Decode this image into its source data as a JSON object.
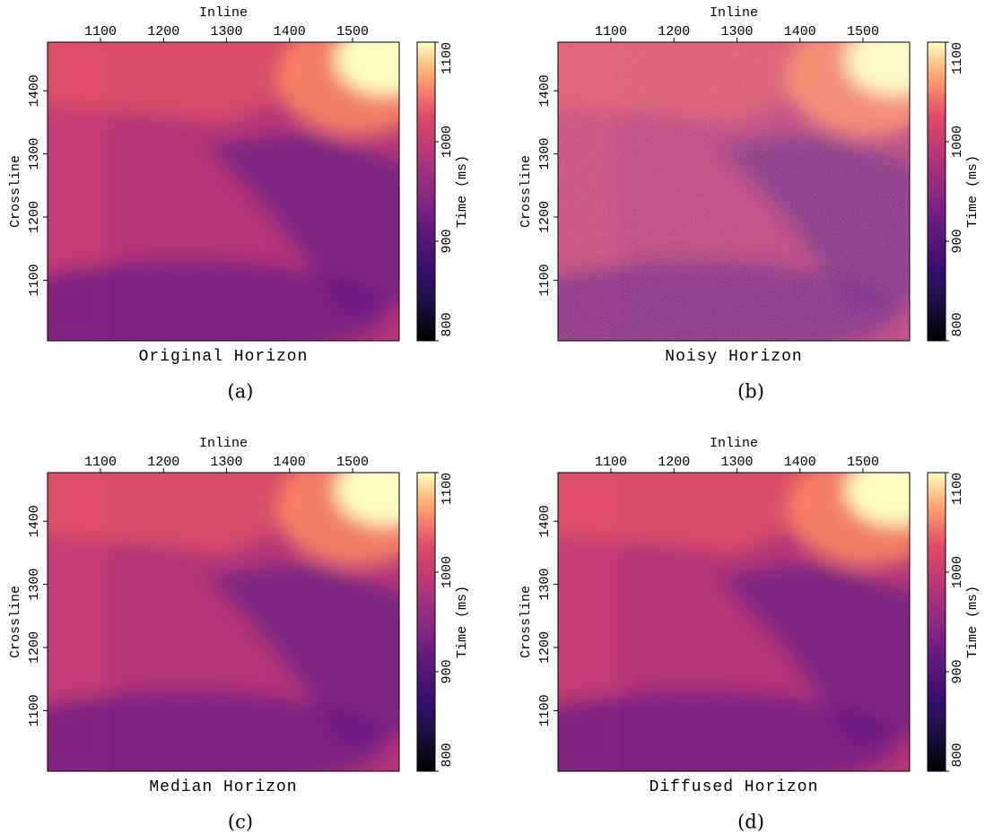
{
  "chart_data": [
    {
      "type": "heatmap",
      "title": "Original Horizon",
      "caption": "(a)",
      "xlabel": "Inline",
      "ylabel": "Crossline",
      "clabel": "Time (ms)",
      "xlim": [
        1016,
        1574
      ],
      "xticks": [
        1100,
        1200,
        1300,
        1400,
        1500
      ],
      "ylim": [
        1004,
        1477
      ],
      "yticks": [
        1100,
        1200,
        1300,
        1400
      ],
      "clim": [
        800,
        1100
      ],
      "cticks": [
        800,
        900,
        1000,
        1100
      ],
      "colormap": "magma"
    },
    {
      "type": "heatmap",
      "title": "Noisy Horizon",
      "caption": "(b)",
      "xlabel": "Inline",
      "ylabel": "Crossline",
      "clabel": "Time (ms)",
      "xlim": [
        1016,
        1574
      ],
      "xticks": [
        1100,
        1200,
        1300,
        1400,
        1500
      ],
      "ylim": [
        1004,
        1477
      ],
      "yticks": [
        1100,
        1200,
        1300,
        1400
      ],
      "clim": [
        800,
        1100
      ],
      "cticks": [
        800,
        900,
        1000,
        1100
      ],
      "colormap": "magma"
    },
    {
      "type": "heatmap",
      "title": "Median Horizon",
      "caption": "(c)",
      "xlabel": "Inline",
      "ylabel": "Crossline",
      "clabel": "Time (ms)",
      "xlim": [
        1016,
        1574
      ],
      "xticks": [
        1100,
        1200,
        1300,
        1400,
        1500
      ],
      "ylim": [
        1004,
        1477
      ],
      "yticks": [
        1100,
        1200,
        1300,
        1400
      ],
      "clim": [
        800,
        1100
      ],
      "cticks": [
        800,
        900,
        1000,
        1100
      ],
      "colormap": "magma"
    },
    {
      "type": "heatmap",
      "title": "Diffused Horizon",
      "caption": "(d)",
      "xlabel": "Inline",
      "ylabel": "Crossline",
      "clabel": "Time (ms)",
      "xlim": [
        1016,
        1574
      ],
      "xticks": [
        1100,
        1200,
        1300,
        1400,
        1500
      ],
      "ylim": [
        1004,
        1477
      ],
      "yticks": [
        1100,
        1200,
        1300,
        1400
      ],
      "clim": [
        800,
        1100
      ],
      "cticks": [
        800,
        900,
        1000,
        1100
      ],
      "colormap": "magma"
    }
  ]
}
